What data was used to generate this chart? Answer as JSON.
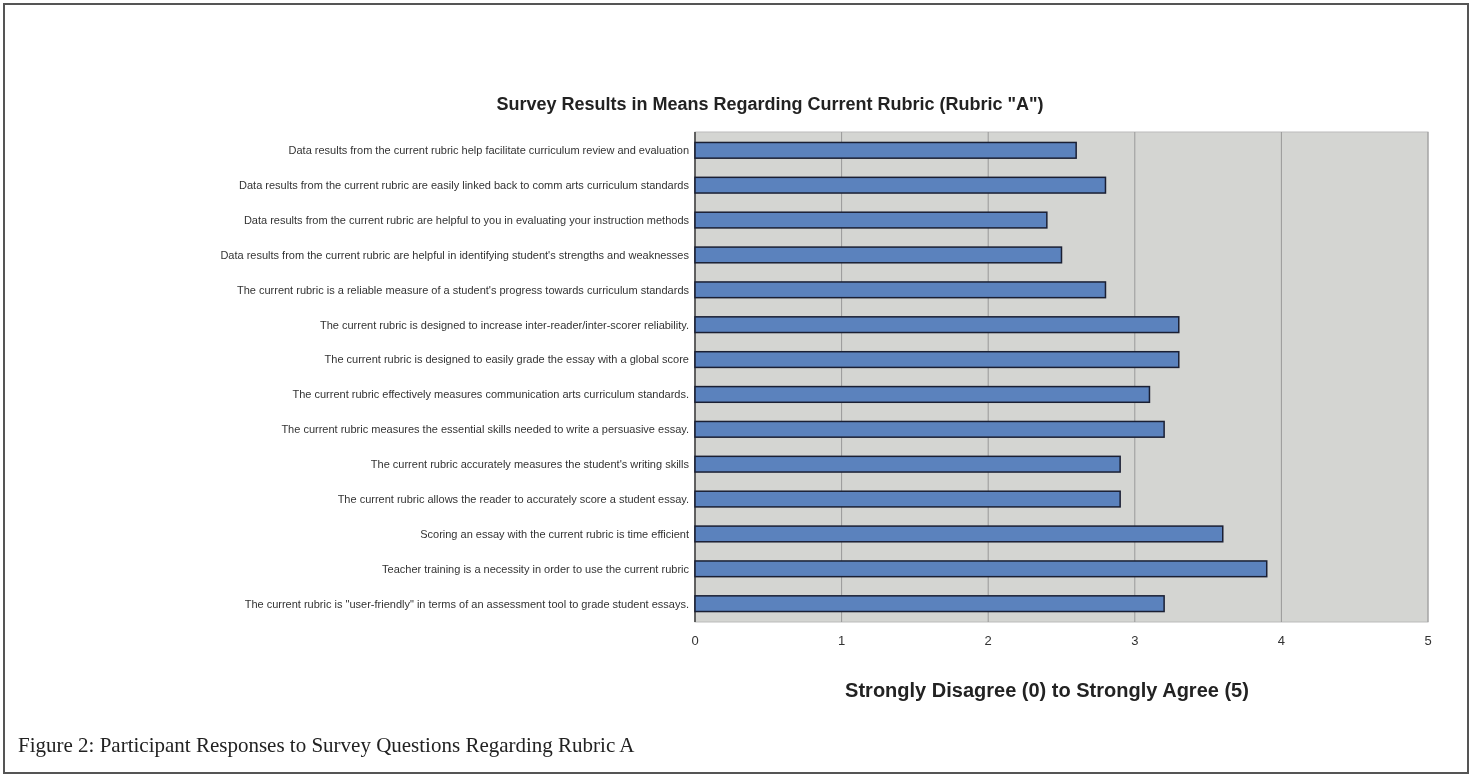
{
  "chart_data": {
    "type": "bar",
    "orientation": "horizontal",
    "title": "Survey Results in Means Regarding Current Rubric (Rubric \"A\")",
    "xlabel": "Strongly Disagree (0) to Strongly Agree (5)",
    "categories": [
      "Data results from the current rubric help facilitate curriculum review and evaluation",
      "Data results from the current rubric are easily linked back to comm arts curriculum standards",
      "Data results from the current rubric are helpful to you in evaluating your instruction methods",
      "Data results from the current rubric are helpful in identifying student's strengths and weaknesses",
      "The current rubric is a reliable measure of a student's progress towards curriculum standards",
      "The current rubric is designed to increase inter-reader/inter-scorer reliability.",
      "The current rubric is designed to easily grade the essay with a global score",
      "The current rubric effectively measures communication arts curriculum standards.",
      "The current rubric measures the essential skills needed to write a persuasive essay.",
      "The current rubric accurately measures the student's writing skills",
      "The current rubric allows the reader to accurately score a student essay.",
      "Scoring an essay with the current rubric is time efficient",
      "Teacher training is a necessity in order to use the current rubric",
      "The current rubric is \"user-friendly\" in terms of an assessment tool to grade student essays."
    ],
    "values": [
      2.6,
      2.8,
      2.4,
      2.5,
      2.8,
      3.3,
      3.3,
      3.1,
      3.2,
      2.9,
      2.9,
      3.6,
      3.9,
      3.2
    ],
    "color": "#5b82bd",
    "xlim": [
      0,
      5
    ],
    "xticks": [
      0,
      1,
      2,
      3,
      4,
      5
    ],
    "grid": "x",
    "annotations": [
      "Figure 2: Participant Responses to Survey Questions Regarding Rubric A"
    ]
  }
}
